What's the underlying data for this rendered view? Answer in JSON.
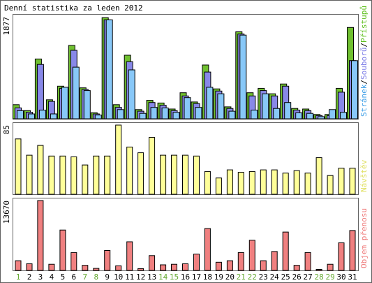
{
  "chart_data": {
    "type": "bar",
    "title": "Denní statistika za leden 2012",
    "categories": [
      "1",
      "2",
      "3",
      "4",
      "5",
      "6",
      "7",
      "8",
      "9",
      "10",
      "11",
      "12",
      "13",
      "14",
      "15",
      "16",
      "17",
      "18",
      "19",
      "20",
      "21",
      "22",
      "23",
      "24",
      "25",
      "26",
      "27",
      "28",
      "29",
      "30",
      "31"
    ],
    "weekend_days": [
      "1",
      "7",
      "8",
      "14",
      "15",
      "21",
      "22",
      "28",
      "29"
    ],
    "panels": [
      {
        "id": "hits",
        "ymax_label": "1877",
        "ymax": 1877,
        "legend": [
          {
            "label": "Stránek",
            "color": "#40a0e8"
          },
          {
            "label": "Souborů",
            "color": "#8080e8"
          },
          {
            "label": "Přístupů",
            "color": "#60c020"
          }
        ],
        "series": [
          {
            "name": "Přístupů",
            "color": "#70c030",
            "values": [
              260,
              150,
              1100,
              350,
              600,
              1350,
              570,
              110,
              1860,
              260,
              1170,
              170,
              340,
              290,
              180,
              480,
              310,
              990,
              550,
              220,
              1600,
              480,
              560,
              460,
              640,
              190,
              180,
              80,
              80,
              560,
              1680
            ]
          },
          {
            "name": "Souborů",
            "color": "#8888e8",
            "values": [
              200,
              120,
              1000,
              320,
              560,
              1260,
              540,
              90,
              1820,
              210,
              1050,
              140,
              300,
              250,
              150,
              420,
              280,
              860,
              510,
              190,
              1560,
              420,
              520,
              420,
              600,
              160,
              150,
              60,
              60,
              490,
              1070
            ]
          },
          {
            "name": "Stránek",
            "color": "#88c8f8",
            "values": [
              150,
              90,
              160,
              90,
              580,
              950,
              520,
              70,
              1820,
              170,
              900,
              100,
              210,
              200,
              120,
              390,
              210,
              580,
              460,
              140,
              1540,
              160,
              460,
              190,
              300,
              110,
              100,
              40,
              170,
              120,
              1070
            ]
          }
        ]
      },
      {
        "id": "visits",
        "ymax_label": "85",
        "ymax": 85,
        "legend": [
          {
            "label": "Návštěv",
            "color": "#e0e060"
          }
        ],
        "series": [
          {
            "name": "Návštěv",
            "color": "#ffff99",
            "values": [
              68,
              48,
              60,
              47,
              47,
              46,
              36,
              47,
              47,
              85,
              58,
              51,
              70,
              48,
              48,
              48,
              47,
              28,
              20,
              30,
              27,
              28,
              30,
              30,
              26,
              29,
              26,
              45,
              23,
              32,
              32
            ]
          }
        ]
      },
      {
        "id": "transfer",
        "ymax_label": "13670",
        "ymax": 13670,
        "legend": [
          {
            "label": "Objem přenosu",
            "color": "#f08080"
          }
        ],
        "series": [
          {
            "name": "Objem přenosu",
            "color": "#f08080",
            "values": [
              1900,
              1300,
              13670,
              1200,
              7900,
              3500,
              1000,
              400,
              3900,
              900,
              5600,
              350,
              2900,
              1100,
              1200,
              1300,
              3200,
              8200,
              1600,
              1900,
              3500,
              5900,
              1900,
              3700,
              7500,
              1000,
              3500,
              200,
              1200,
              5400,
              7800
            ]
          }
        ]
      }
    ]
  }
}
